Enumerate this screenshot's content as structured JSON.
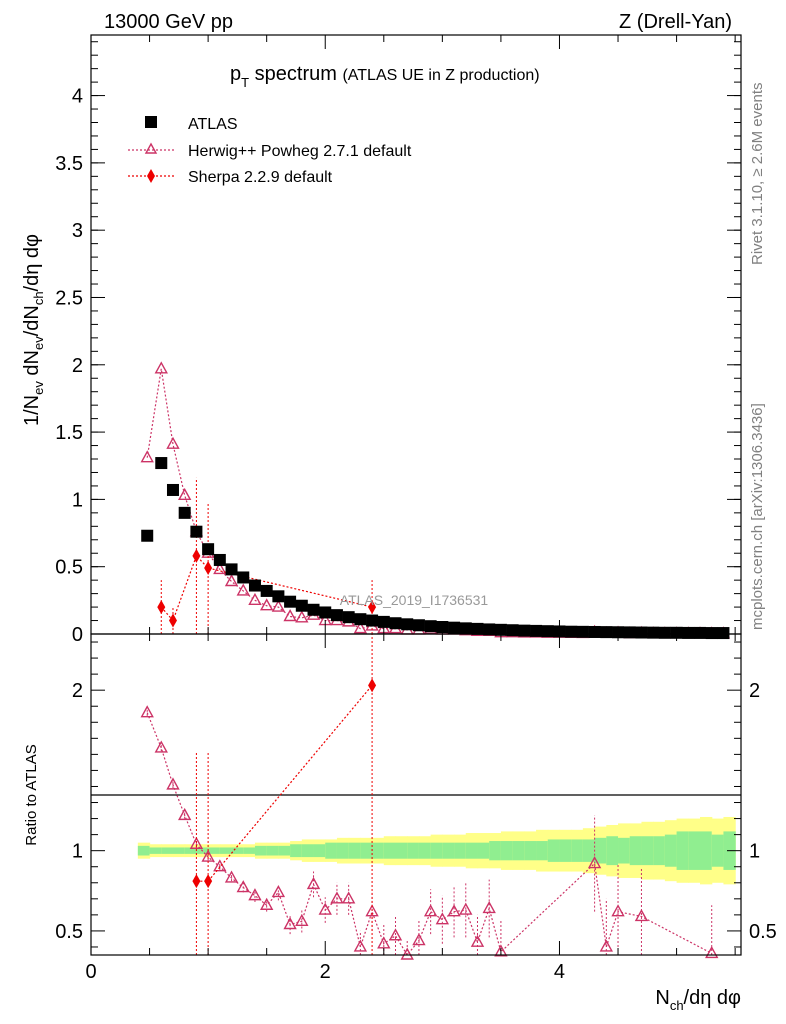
{
  "header": {
    "left": "13000 GeV pp",
    "right": "Z (Drell-Yan)"
  },
  "side_labels": {
    "rivet": "Rivet 3.1.10, ≥ 2.6M events",
    "mcplots": "mcplots.cern.ch [arXiv:1306.3436]"
  },
  "plot_title": {
    "main": "p",
    "main_sub": "T",
    "main_rest": " spectrum",
    "sub": "(ATLAS UE in Z production)"
  },
  "watermark": "ATLAS_2019_I1736531",
  "colors": {
    "atlas": "#000000",
    "herwig": "#cc3366",
    "sherpa": "#ee0000",
    "band_inner": "#90ee90",
    "band_outer": "#ffff88"
  },
  "chart_data": [
    {
      "type": "scatter",
      "panel": "main",
      "ylabel": "1/N_ev dN_ev/dN_ch/dη dφ",
      "ylim": [
        0,
        4.45
      ],
      "xlim": [
        0,
        5.55
      ],
      "yticks": [
        "0",
        "0.5",
        "1",
        "1.5",
        "2",
        "2.5",
        "3",
        "3.5",
        "4"
      ],
      "legend_position": "top-left",
      "series": [
        {
          "name": "ATLAS",
          "marker": "square",
          "x": [
            0.48,
            0.6,
            0.7,
            0.8,
            0.9,
            1.0,
            1.1,
            1.2,
            1.3,
            1.4,
            1.5,
            1.6,
            1.7,
            1.8,
            1.9,
            2.0,
            2.1,
            2.2,
            2.3,
            2.4,
            2.5,
            2.6,
            2.7,
            2.8,
            2.9,
            3.0,
            3.1,
            3.2,
            3.3,
            3.4,
            3.5,
            3.6,
            3.7,
            3.8,
            3.9,
            4.0,
            4.1,
            4.2,
            4.3,
            4.4,
            4.5,
            4.6,
            4.7,
            4.8,
            4.9,
            5.0,
            5.1,
            5.2,
            5.3,
            5.4
          ],
          "y": [
            0.73,
            1.27,
            1.07,
            0.9,
            0.76,
            0.63,
            0.55,
            0.48,
            0.42,
            0.36,
            0.32,
            0.28,
            0.24,
            0.21,
            0.18,
            0.16,
            0.14,
            0.125,
            0.11,
            0.1,
            0.09,
            0.08,
            0.072,
            0.065,
            0.058,
            0.052,
            0.047,
            0.042,
            0.038,
            0.034,
            0.031,
            0.028,
            0.025,
            0.023,
            0.021,
            0.019,
            0.017,
            0.016,
            0.015,
            0.014,
            0.013,
            0.012,
            0.011,
            0.01,
            0.009,
            0.009,
            0.008,
            0.008,
            0.007,
            0.007
          ]
        },
        {
          "name": "Herwig++ Powheg 2.7.1 default",
          "marker": "open-triangle",
          "x": [
            0.48,
            0.6,
            0.7,
            0.8,
            0.9,
            1.0,
            1.1,
            1.2,
            1.3,
            1.4,
            1.5,
            1.6,
            1.7,
            1.8,
            1.9,
            2.0,
            2.1,
            2.2,
            2.3,
            2.4,
            2.5,
            2.6,
            2.7,
            2.8,
            2.9,
            3.0,
            3.1,
            3.2,
            3.3,
            3.4,
            3.5,
            3.6,
            3.7,
            3.8,
            3.9,
            4.0,
            4.1,
            4.2,
            4.3,
            4.4,
            4.5,
            4.6,
            4.7,
            4.8,
            4.9,
            5.0,
            5.1,
            5.2,
            5.3,
            5.4
          ],
          "y": [
            1.31,
            1.97,
            1.41,
            1.03,
            0.76,
            0.6,
            0.48,
            0.39,
            0.32,
            0.25,
            0.21,
            0.2,
            0.13,
            0.12,
            0.14,
            0.1,
            0.1,
            0.09,
            0.04,
            0.06,
            0.04,
            0.04,
            0.03,
            0.03,
            0.035,
            0.03,
            0.03,
            0.025,
            0.02,
            0.02,
            0.01,
            0.01,
            0.008,
            0.008,
            0.006,
            0.006,
            0.005,
            0.004,
            0.013,
            0.005,
            0.008,
            0.003,
            0.006,
            0.003,
            0.002,
            0.002,
            0.002,
            0.002,
            0.002,
            0.002
          ]
        },
        {
          "name": "Sherpa 2.2.9 default",
          "marker": "filled-diamond",
          "x": [
            0.6,
            0.7,
            0.9,
            1.0,
            2.4
          ],
          "y": [
            0.2,
            0.1,
            0.58,
            0.49,
            0.2
          ],
          "yerr": [
            0.2,
            0.1,
            0.58,
            0.49,
            0.2
          ]
        }
      ]
    },
    {
      "type": "scatter",
      "panel": "ratio",
      "ylabel": "Ratio to ATLAS",
      "xlabel": "N_ch/dη dφ",
      "ylim": [
        0.35,
        2.35
      ],
      "xlim": [
        0,
        5.55
      ],
      "yticks": [
        "0.5",
        "1",
        "2"
      ],
      "xticks": [
        "0",
        "2",
        "4"
      ],
      "reference_line": 1,
      "band": {
        "x": [
          0.45,
          0.55,
          0.65,
          0.75,
          0.85,
          0.95,
          1.05,
          1.15,
          1.25,
          1.35,
          1.45,
          1.55,
          1.65,
          1.75,
          1.85,
          1.95,
          2.05,
          2.15,
          2.25,
          2.35,
          2.45,
          2.55,
          2.65,
          2.75,
          2.85,
          2.95,
          3.05,
          3.15,
          3.25,
          3.35,
          3.45,
          3.55,
          3.65,
          3.75,
          3.85,
          3.95,
          4.05,
          4.15,
          4.25,
          4.35,
          4.45,
          4.55,
          4.65,
          4.75,
          4.85,
          4.95,
          5.05,
          5.15,
          5.25,
          5.35,
          5.45
        ],
        "inner": [
          0.03,
          0.02,
          0.02,
          0.02,
          0.02,
          0.02,
          0.02,
          0.02,
          0.02,
          0.02,
          0.03,
          0.03,
          0.03,
          0.04,
          0.04,
          0.04,
          0.05,
          0.05,
          0.05,
          0.05,
          0.05,
          0.05,
          0.05,
          0.05,
          0.05,
          0.05,
          0.05,
          0.05,
          0.05,
          0.05,
          0.06,
          0.06,
          0.06,
          0.06,
          0.06,
          0.07,
          0.07,
          0.07,
          0.07,
          0.08,
          0.09,
          0.08,
          0.09,
          0.09,
          0.09,
          0.1,
          0.12,
          0.12,
          0.12,
          0.1,
          0.12
        ],
        "outer": [
          0.05,
          0.04,
          0.04,
          0.04,
          0.04,
          0.04,
          0.04,
          0.04,
          0.04,
          0.04,
          0.05,
          0.05,
          0.05,
          0.06,
          0.07,
          0.07,
          0.07,
          0.08,
          0.08,
          0.08,
          0.08,
          0.09,
          0.09,
          0.09,
          0.09,
          0.1,
          0.1,
          0.1,
          0.11,
          0.11,
          0.11,
          0.12,
          0.12,
          0.12,
          0.13,
          0.13,
          0.13,
          0.13,
          0.14,
          0.15,
          0.16,
          0.17,
          0.17,
          0.18,
          0.18,
          0.19,
          0.2,
          0.2,
          0.21,
          0.2,
          0.21
        ]
      },
      "series": [
        {
          "name": "Herwig++ Powheg 2.7.1 default",
          "marker": "open-triangle",
          "x": [
            0.48,
            0.6,
            0.7,
            0.8,
            0.9,
            1.0,
            1.1,
            1.2,
            1.3,
            1.4,
            1.5,
            1.6,
            1.7,
            1.8,
            1.9,
            2.0,
            2.1,
            2.2,
            2.3,
            2.4,
            2.5,
            2.6,
            2.7,
            2.8,
            2.9,
            3.0,
            3.1,
            3.2,
            3.3,
            3.4,
            3.5,
            4.3,
            4.4,
            4.5,
            4.7,
            5.3
          ],
          "y": [
            1.86,
            1.64,
            1.41,
            1.22,
            1.04,
            0.96,
            0.9,
            0.83,
            0.77,
            0.72,
            0.66,
            0.74,
            0.54,
            0.56,
            0.79,
            0.63,
            0.7,
            0.7,
            0.4,
            0.62,
            0.42,
            0.47,
            0.33,
            0.44,
            0.62,
            0.57,
            0.62,
            0.63,
            0.43,
            0.64,
            0.37,
            0.92,
            0.4,
            0.62,
            0.59,
            0.36
          ],
          "yerr": [
            0.02,
            0.02,
            0.02,
            0.02,
            0.02,
            0.02,
            0.02,
            0.02,
            0.03,
            0.04,
            0.04,
            0.05,
            0.06,
            0.07,
            0.08,
            0.08,
            0.1,
            0.1,
            0.1,
            0.12,
            0.12,
            0.12,
            0.12,
            0.13,
            0.14,
            0.15,
            0.16,
            0.17,
            0.17,
            0.18,
            0.2,
            0.3,
            0.3,
            0.3,
            0.3,
            0.3
          ]
        },
        {
          "name": "Sherpa 2.2.9 default",
          "marker": "filled-diamond",
          "x": [
            0.9,
            1.0,
            2.4
          ],
          "y": [
            0.81,
            0.81,
            2.03
          ],
          "yerr": [
            0.81,
            0.81,
            2.03
          ]
        }
      ]
    }
  ]
}
